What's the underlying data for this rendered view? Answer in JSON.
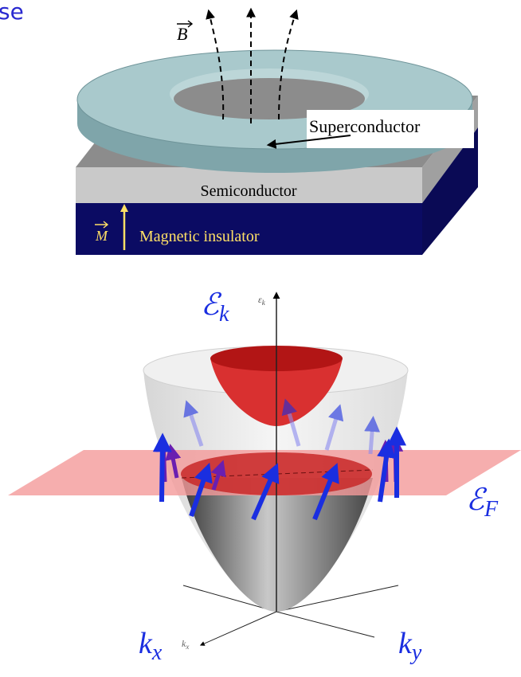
{
  "header_fragment": "se",
  "top_figure": {
    "field_label": "B",
    "superconductor": "Superconductor",
    "semiconductor": "Semiconductor",
    "magnetization_label": "M",
    "insulator": "Magnetic insulator"
  },
  "bottom_figure": {
    "energy_label": {
      "symbol": "ℰ",
      "subscript": "k"
    },
    "energy_axis_small": {
      "symbol": "ε",
      "subscript": "k"
    },
    "fermi_label": {
      "symbol": "ℰ",
      "subscript": "F"
    },
    "kx_label": {
      "symbol": "k",
      "subscript": "x"
    },
    "kx_axis_small": {
      "symbol": "k",
      "subscript": "x"
    },
    "ky_label": {
      "symbol": "k",
      "subscript": "y"
    }
  }
}
